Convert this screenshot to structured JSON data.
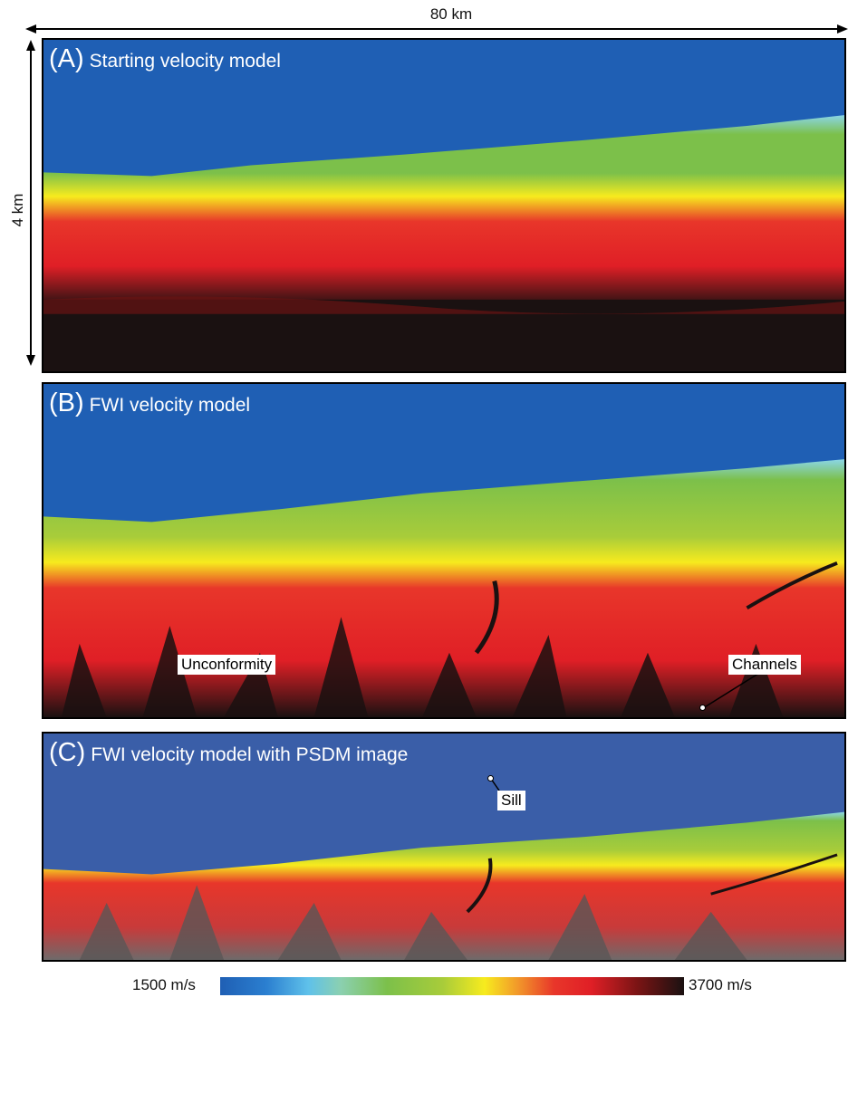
{
  "scale": {
    "horizontal_label": "80 km",
    "vertical_label": "4 km"
  },
  "panels": [
    {
      "letter": "(A)",
      "name": "Starting velocity model"
    },
    {
      "letter": "(B)",
      "name": "FWI velocity model"
    },
    {
      "letter": "(C)",
      "name": "FWI velocity model with PSDM image"
    }
  ],
  "annotations": {
    "unconformity": "Unconformity",
    "sill": "Sill",
    "channels": "Channels"
  },
  "colorbar": {
    "min_label": "1500 m/s",
    "max_label": "3700 m/s"
  },
  "colors": {
    "water": "#1f5fb4",
    "cyan": "#5fc1ea",
    "green": "#7cc04a",
    "yellow": "#f7eb1e",
    "red": "#e01f26",
    "black": "#1a1111"
  }
}
